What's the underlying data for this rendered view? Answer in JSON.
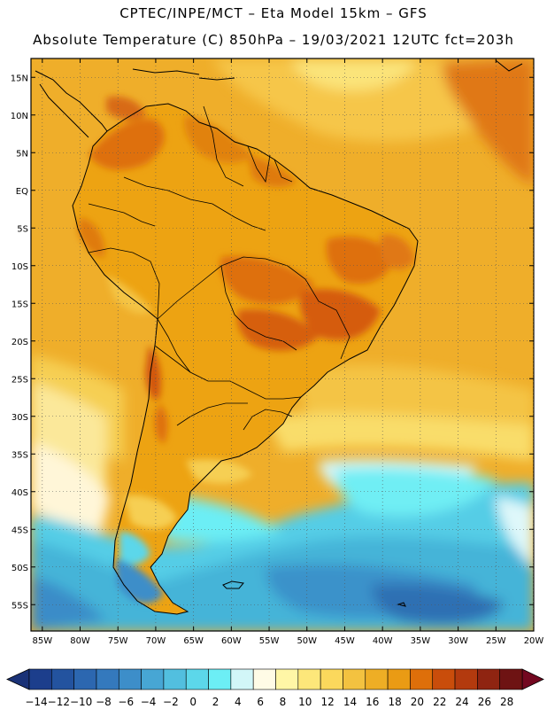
{
  "title": {
    "line1": "CPTEC/INPE/MCT –  Eta Model 15km – GFS",
    "line2": "Absolute Temperature (C) 850hPa – 19/03/2021 12UTC fct=203h"
  },
  "map": {
    "lat_ticks": [
      "15N",
      "10N",
      "5N",
      "EQ",
      "5S",
      "10S",
      "15S",
      "20S",
      "25S",
      "30S",
      "35S",
      "40S",
      "45S",
      "50S",
      "55S"
    ],
    "lat_values": [
      15,
      10,
      5,
      0,
      -5,
      -10,
      -15,
      -20,
      -25,
      -30,
      -35,
      -40,
      -45,
      -50,
      -55
    ],
    "lon_ticks": [
      "85W",
      "80W",
      "75W",
      "70W",
      "65W",
      "60W",
      "55W",
      "50W",
      "45W",
      "40W",
      "35W",
      "30W",
      "25W",
      "20W"
    ],
    "lon_values": [
      -85,
      -80,
      -75,
      -70,
      -65,
      -60,
      -55,
      -50,
      -45,
      -40,
      -35,
      -30,
      -25,
      -20
    ],
    "lat_range": [
      -58.5,
      17.5
    ],
    "lon_range": [
      -86.5,
      -20
    ]
  },
  "colorbar": {
    "labels": [
      "-14",
      "-12",
      "-10",
      "-8",
      "-6",
      "-4",
      "-2",
      "0",
      "2",
      "4",
      "6",
      "8",
      "10",
      "12",
      "14",
      "16",
      "18",
      "20",
      "22",
      "24",
      "26",
      "28"
    ],
    "colors": [
      "#1c3e8c",
      "#23539f",
      "#2c67b0",
      "#3479bd",
      "#3d8ec9",
      "#47a6d4",
      "#52bfdf",
      "#5cd7ea",
      "#6ceef5",
      "#d2f6f8",
      "#fffbe6",
      "#fff6a6",
      "#fde77a",
      "#fbd85c",
      "#f3c240",
      "#eeae25",
      "#ea9b14",
      "#de6f0a",
      "#c94d0b",
      "#b33a0e",
      "#8f2411",
      "#6e1313"
    ],
    "under_color": "#1a3277",
    "over_color": "#730820"
  },
  "field": {
    "ocean_color": "#efae2a",
    "land_color": "#eda312"
  }
}
